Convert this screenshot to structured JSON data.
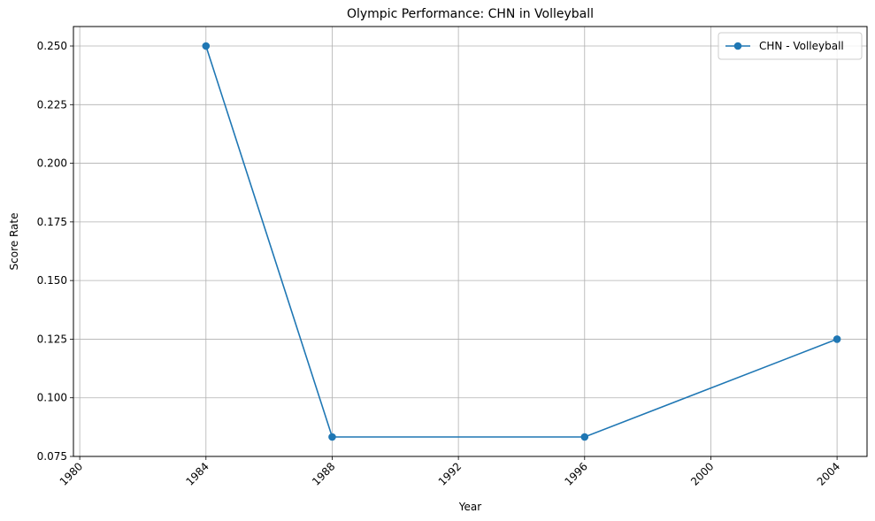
{
  "chart_data": {
    "type": "line",
    "title": "Olympic Performance: CHN in Volleyball",
    "xlabel": "Year",
    "ylabel": "Score Rate",
    "x_ticks": [
      1980,
      1984,
      1988,
      1992,
      1996,
      2000,
      2004
    ],
    "y_ticks": [
      "0.075",
      "0.100",
      "0.125",
      "0.150",
      "0.175",
      "0.200",
      "0.225",
      "0.250"
    ],
    "xlim": [
      1979.8,
      2004.95
    ],
    "ylim": [
      0.075,
      0.2583
    ],
    "grid": true,
    "legend_position": "top-right",
    "series": [
      {
        "name": "CHN - Volleyball",
        "color": "#1f77b4",
        "marker": "circle",
        "x": [
          1984,
          1988,
          1996,
          2004
        ],
        "y": [
          0.25,
          0.0833,
          0.0833,
          0.125
        ]
      }
    ]
  }
}
